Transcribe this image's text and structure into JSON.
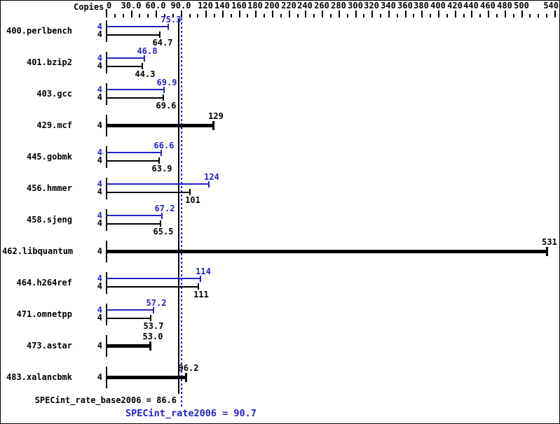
{
  "chart_data": {
    "type": "bar",
    "copies_header": "Copies",
    "colors": {
      "peak": "#2323c3",
      "base": "#000000"
    },
    "axis": {
      "min": 0,
      "max": 540,
      "minor_step": 10,
      "majors": [
        {
          "value": 0,
          "label": "0"
        },
        {
          "value": 30,
          "label": "30.0"
        },
        {
          "value": 60,
          "label": "60.0"
        },
        {
          "value": 90,
          "label": "90.0"
        },
        {
          "value": 120,
          "label": "120"
        },
        {
          "value": 140,
          "label": "140"
        },
        {
          "value": 160,
          "label": "160"
        },
        {
          "value": 180,
          "label": "180"
        },
        {
          "value": 200,
          "label": "200"
        },
        {
          "value": 220,
          "label": "220"
        },
        {
          "value": 240,
          "label": "240"
        },
        {
          "value": 260,
          "label": "260"
        },
        {
          "value": 280,
          "label": "280"
        },
        {
          "value": 300,
          "label": "300"
        },
        {
          "value": 320,
          "label": "320"
        },
        {
          "value": 340,
          "label": "340"
        },
        {
          "value": 360,
          "label": "360"
        },
        {
          "value": 380,
          "label": "380"
        },
        {
          "value": 400,
          "label": "400"
        },
        {
          "value": 420,
          "label": "420"
        },
        {
          "value": 440,
          "label": "440"
        },
        {
          "value": 460,
          "label": "460"
        },
        {
          "value": 480,
          "label": "480"
        },
        {
          "value": 500,
          "label": "500"
        },
        {
          "value": 540,
          "label": "540"
        }
      ]
    },
    "benchmarks": [
      {
        "name": "400.perlbench",
        "copies": 4,
        "style": "pair",
        "peak": 75.3,
        "base": 64.7,
        "peak_label": "75.3",
        "base_label": "64.7"
      },
      {
        "name": "401.bzip2",
        "copies": 4,
        "style": "pair",
        "peak": 46.8,
        "base": 44.3,
        "peak_label": "46.8",
        "base_label": "44.3"
      },
      {
        "name": "403.gcc",
        "copies": 4,
        "style": "pair",
        "peak": 69.9,
        "base": 69.6,
        "peak_label": "69.9",
        "base_label": "69.6"
      },
      {
        "name": "429.mcf",
        "copies": 4,
        "style": "single",
        "peak": 129,
        "base": 129,
        "label": "129"
      },
      {
        "name": "445.gobmk",
        "copies": 4,
        "style": "pair",
        "peak": 66.6,
        "base": 63.9,
        "peak_label": "66.6",
        "base_label": "63.9"
      },
      {
        "name": "456.hmmer",
        "copies": 4,
        "style": "pair",
        "peak": 124,
        "base": 101,
        "peak_label": "124",
        "base_label": "101"
      },
      {
        "name": "458.sjeng",
        "copies": 4,
        "style": "pair",
        "peak": 67.2,
        "base": 65.5,
        "peak_label": "67.2",
        "base_label": "65.5"
      },
      {
        "name": "462.libquantum",
        "copies": 4,
        "style": "single",
        "peak": 531,
        "base": 531,
        "label": "531"
      },
      {
        "name": "464.h264ref",
        "copies": 4,
        "style": "pair",
        "peak": 114,
        "base": 111,
        "peak_label": "114",
        "base_label": "111"
      },
      {
        "name": "471.omnetpp",
        "copies": 4,
        "style": "pair",
        "peak": 57.2,
        "base": 53.7,
        "peak_label": "57.2",
        "base_label": "53.7"
      },
      {
        "name": "473.astar",
        "copies": 4,
        "style": "single",
        "peak": 53.0,
        "base": 53.0,
        "label": "53.0"
      },
      {
        "name": "483.xalancbmk",
        "copies": 4,
        "style": "single",
        "peak": 96.2,
        "base": 96.2,
        "label": "96.2"
      }
    ],
    "reference_lines": [
      {
        "id": "base",
        "value": 86.6,
        "style": "solid",
        "color": "#000000"
      },
      {
        "id": "peak",
        "value": 90.7,
        "style": "dotted",
        "color": "#2323c3"
      }
    ],
    "summary": {
      "base_value": 86.6,
      "peak_value": 90.7,
      "base_label": "SPECint_rate_base2006 = 86.6",
      "peak_label": "SPECint_rate2006 = 90.7"
    }
  }
}
